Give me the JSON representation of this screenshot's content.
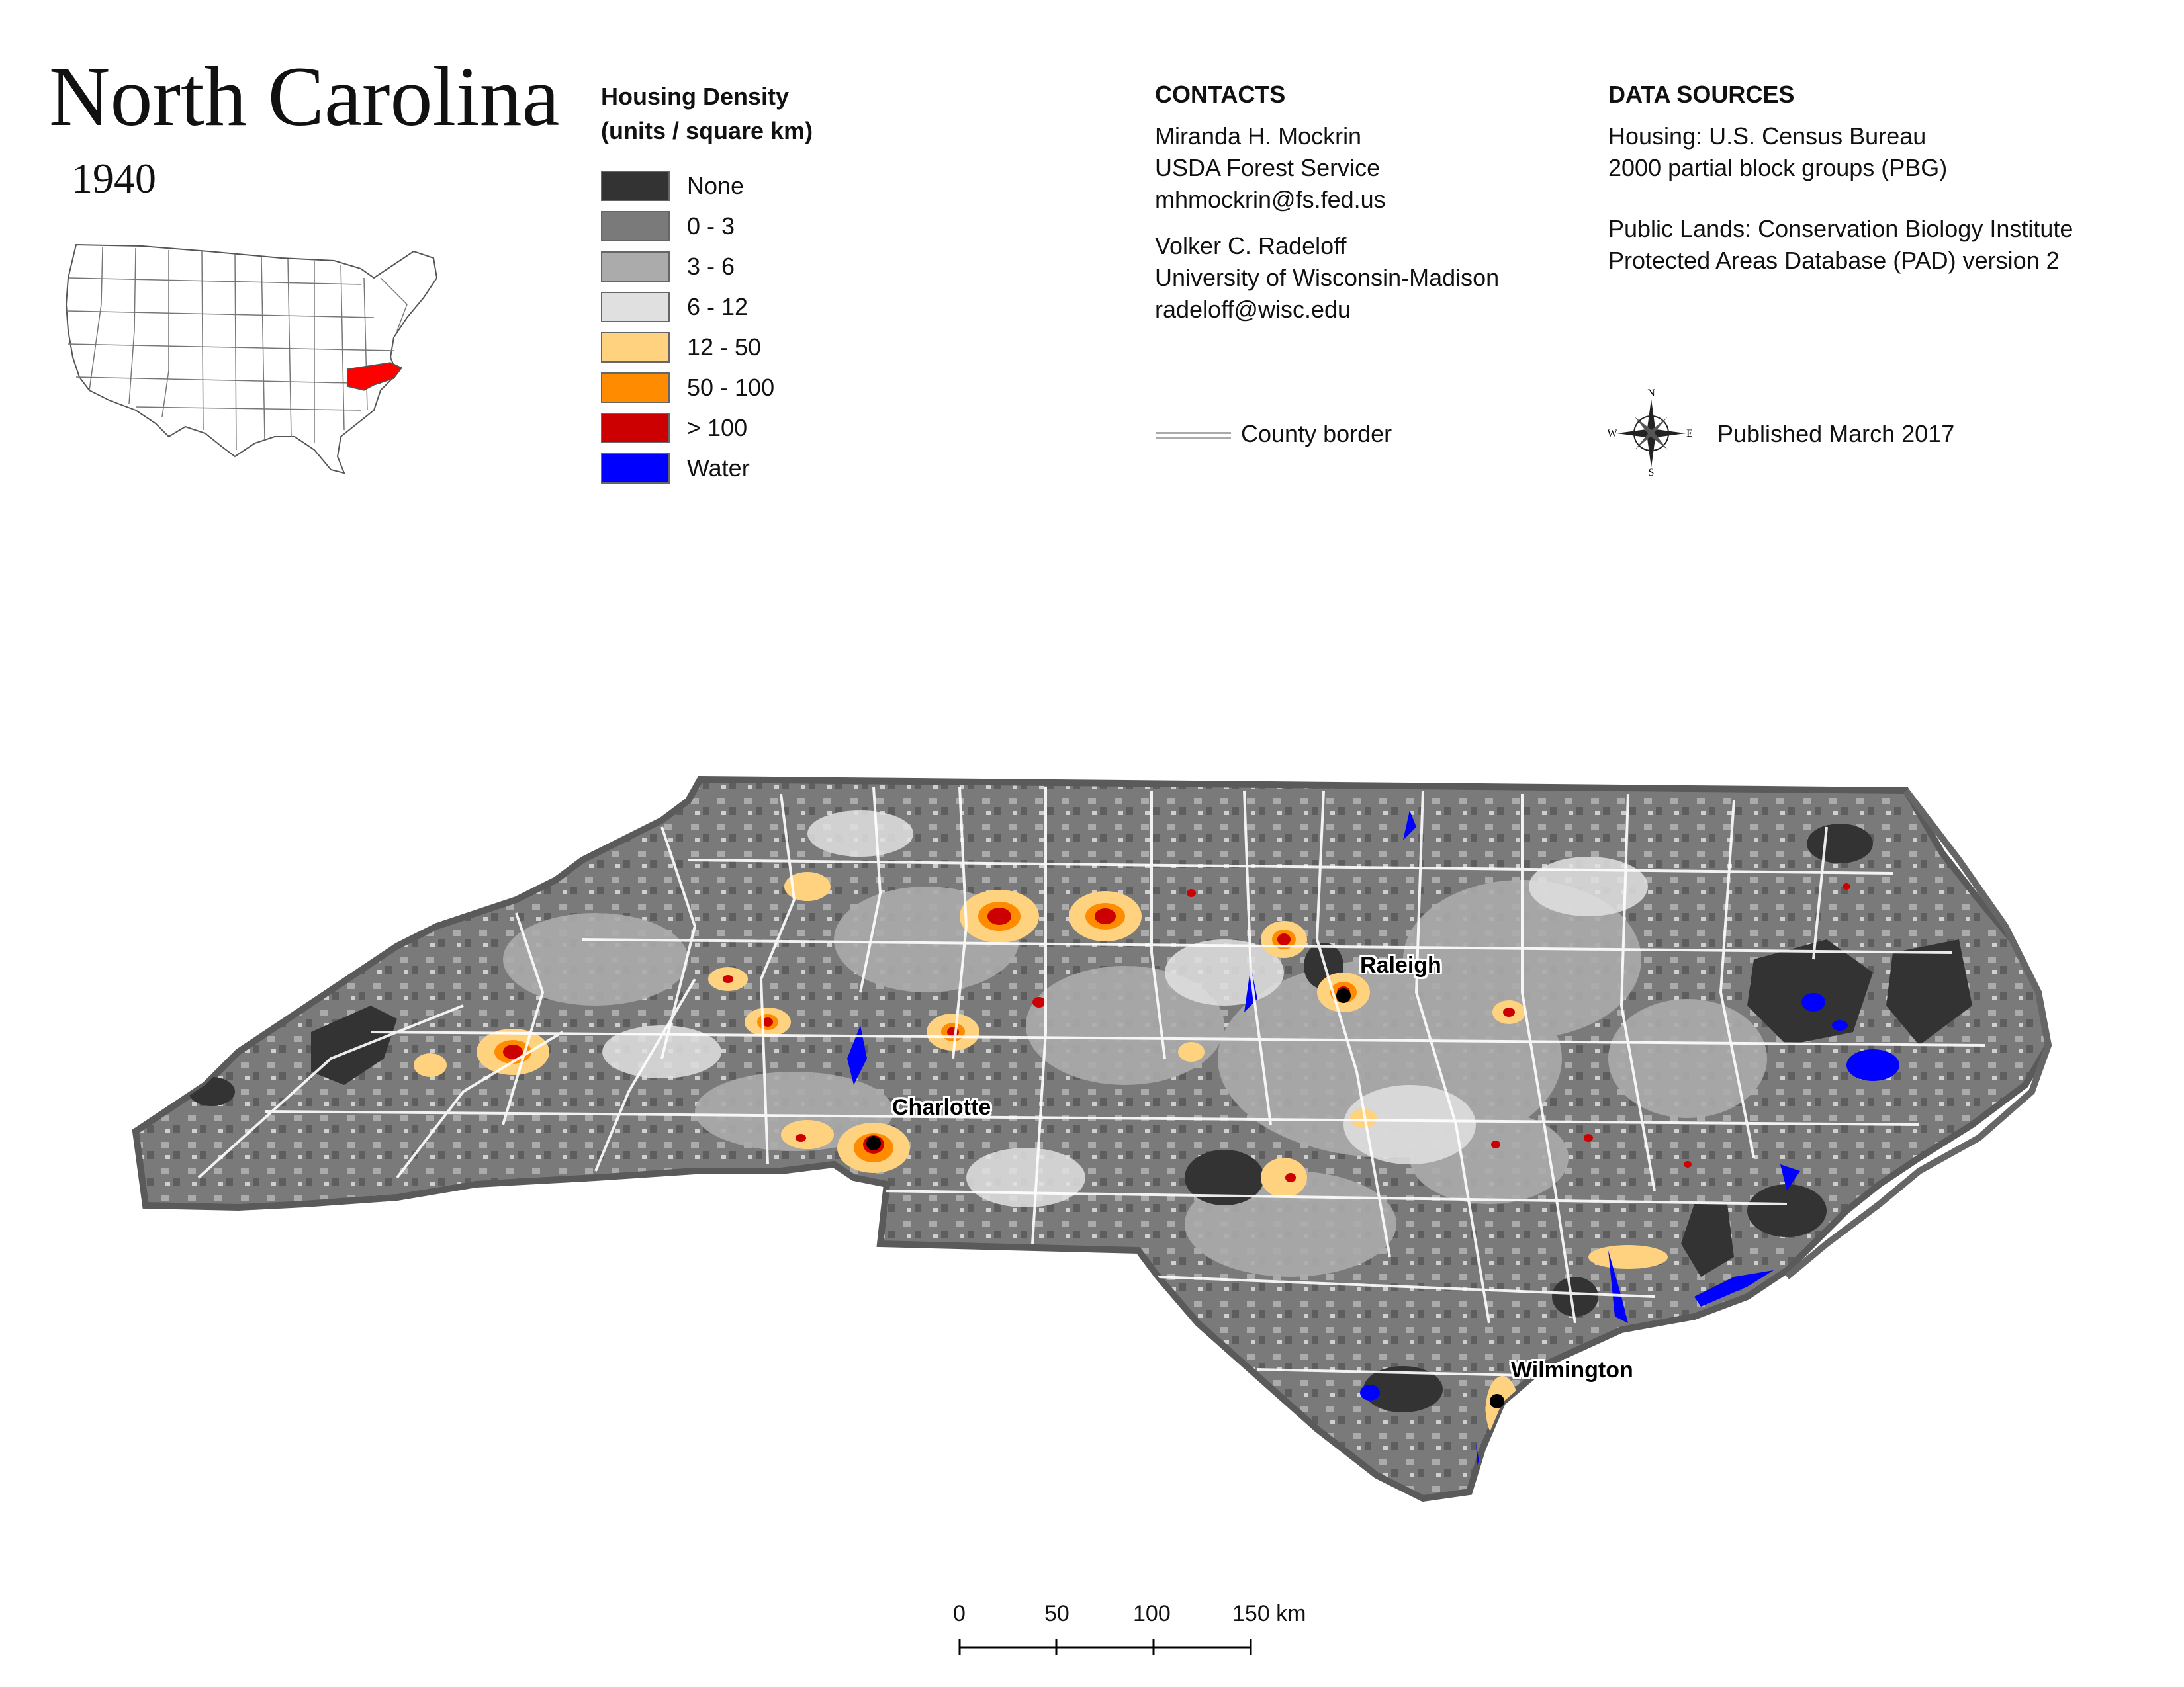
{
  "title": "North Carolina",
  "year": "1940",
  "legend": {
    "title_line1": "Housing Density",
    "title_line2": "(units / square km)",
    "items": [
      {
        "label": "None",
        "color": "#333333"
      },
      {
        "label": "0 - 3",
        "color": "#7a7a7a"
      },
      {
        "label": "3 - 6",
        "color": "#ababab"
      },
      {
        "label": "6 - 12",
        "color": "#e0e0e0"
      },
      {
        "label": "12 - 50",
        "color": "#ffd27f"
      },
      {
        "label": "50 - 100",
        "color": "#ff8c00"
      },
      {
        "label": "> 100",
        "color": "#cc0000"
      },
      {
        "label": "Water",
        "color": "#0000ff"
      }
    ]
  },
  "contacts": {
    "heading": "CONTACTS",
    "person1": {
      "name": "Miranda H. Mockrin",
      "org": "USDA Forest Service",
      "email": "mhmockrin@fs.fed.us"
    },
    "person2": {
      "name": "Volker C. Radeloff",
      "org": "University of Wisconsin-Madison",
      "email": "radeloff@wisc.edu"
    }
  },
  "data_sources": {
    "heading": "DATA SOURCES",
    "housing_line1": "Housing: U.S. Census Bureau",
    "housing_line2": "2000 partial block groups (PBG)",
    "public_line1": "Public Lands: Conservation Biology Institute",
    "public_line2": "Protected Areas Database (PAD) version 2"
  },
  "county_border_label": "County border",
  "published": "Published March 2017",
  "compass": {
    "n": "N",
    "s": "S",
    "e": "E",
    "w": "W"
  },
  "cities": [
    {
      "name": "Raleigh"
    },
    {
      "name": "Charlotte"
    },
    {
      "name": "Wilmington"
    }
  ],
  "scale_bar": {
    "ticks": [
      "0",
      "50",
      "100",
      "150 km"
    ]
  },
  "inset": {
    "highlight_color": "#ff0000",
    "highlight_state": "North Carolina"
  }
}
